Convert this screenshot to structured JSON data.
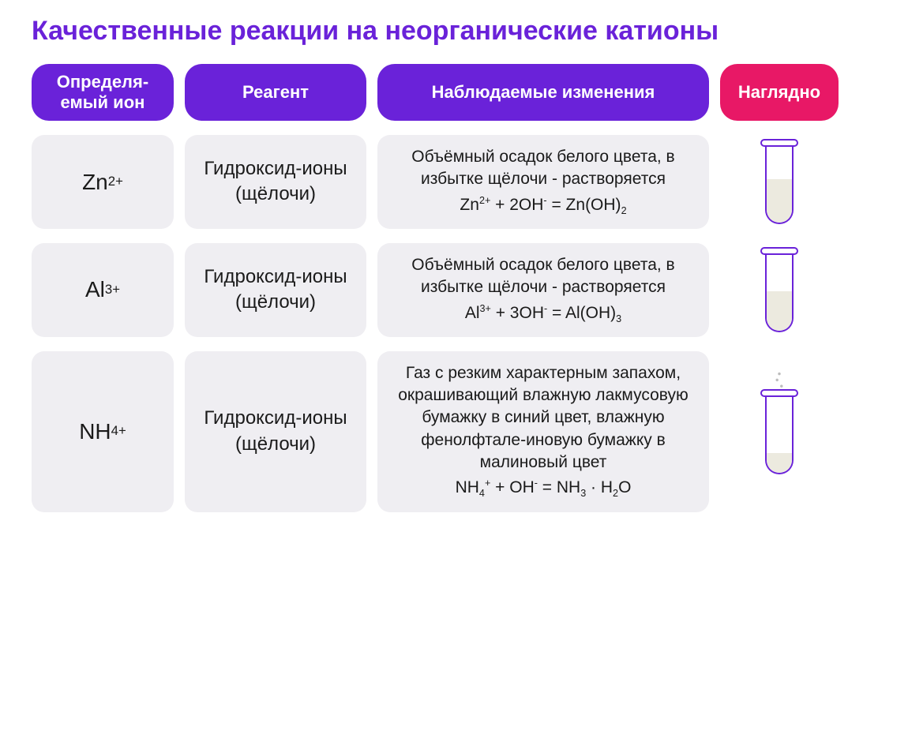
{
  "title": "Качественные реакции на неорганические катионы",
  "headers": {
    "ion": "Определя-\nемый ион",
    "reagent": "Реагент",
    "observation": "Наблюдаемые изменения",
    "visual": "Наглядно"
  },
  "header_colors": {
    "ion": "#6a22d9",
    "reagent": "#6a22d9",
    "observation": "#6a22d9",
    "visual": "#e81866"
  },
  "cell_bg": "#efeef2",
  "tube_border": "#6a22d9",
  "precipitate_color": "#eceadf",
  "rows": [
    {
      "ion_html": "Zn<sup>2+</sup>",
      "reagent": "Гидроксид-ионы (щёлочи)",
      "obs_text": "Объёмный осадок белого цвета, в избытке щёлочи - растворяется",
      "equation_html": "Zn<sup>2+</sup> + 2OH<sup>-</sup> = Zn(OH)<sub>2</sub>",
      "visual": {
        "type": "precipitate",
        "fill_height_pct": 55
      }
    },
    {
      "ion_html": "Al<sup>3+</sup>",
      "reagent": "Гидроксид-ионы (щёлочи)",
      "obs_text": "Объёмный осадок белого цвета, в избытке щёлочи - растворяется",
      "equation_html": "Al<sup>3+</sup> + 3OH<sup>-</sup> = Al(OH)<sub>3</sub>",
      "visual": {
        "type": "precipitate",
        "fill_height_pct": 50
      }
    },
    {
      "ion_html": "NH<sub>4</sub><sup>+</sup>",
      "reagent": "Гидроксид-ионы (щёлочи)",
      "obs_text": "Газ с резким характерным запахом, окрашивающий влажную лакмусовую бумажку в синий цвет, влажную фенолфтале-иновую бумажку в малиновый цвет",
      "equation_html": "NH<sub>4</sub><sup>+</sup> + OH<sup>-</sup> = NH<sub>3</sub> · H<sub>2</sub>O",
      "visual": {
        "type": "gas",
        "fill_height_pct": 25
      }
    }
  ]
}
